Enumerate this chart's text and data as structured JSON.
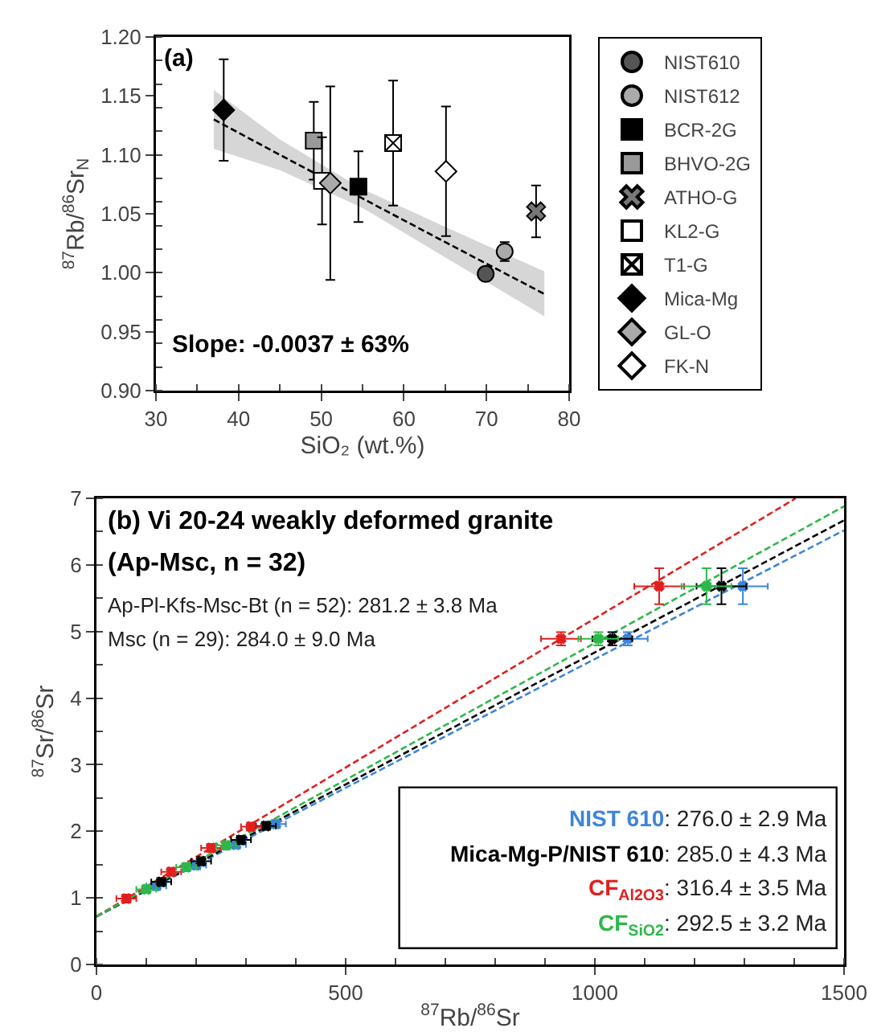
{
  "chart_data": [
    {
      "type": "scatter",
      "title": "(a)",
      "xlabel": "SiO₂ (wt.%)",
      "ylabel": "$^{87}$Rb/$^{86}$Sr$_{N}$",
      "xlim": [
        30,
        80
      ],
      "xticks": [
        30,
        40,
        50,
        60,
        70,
        80
      ],
      "ylim": [
        0.9,
        1.2
      ],
      "yticks": [
        {
          "value": 0.9,
          "label": "0.90"
        },
        {
          "value": 0.95,
          "label": "0.95"
        },
        {
          "value": 1.0,
          "label": "1.00"
        },
        {
          "value": 1.05,
          "label": "1.05"
        },
        {
          "value": 1.1,
          "label": "1.10"
        },
        {
          "value": 1.15,
          "label": "1.15"
        },
        {
          "value": 1.2,
          "label": "1.20"
        }
      ],
      "grid": false,
      "legend": "right",
      "annotations": [
        "Slope: -0.0037 ± 63%"
      ],
      "series": [
        {
          "type": "line",
          "color": "#000000",
          "line_style": "dashed",
          "marker": "none",
          "x": [
            37,
            45,
            55,
            65,
            77
          ],
          "values": [
            1.13,
            1.1,
            1.063,
            1.026,
            0.982
          ],
          "lower": [
            1.105,
            1.087,
            1.055,
            1.013,
            0.963
          ],
          "upper": [
            1.155,
            1.113,
            1.071,
            1.039,
            1.001
          ]
        },
        {
          "name": "NIST610",
          "color": "#555555",
          "marker": "circle",
          "x": [
            69.9
          ],
          "values": [
            0.999
          ]
        },
        {
          "name": "NIST612",
          "color": "#aaaaaa",
          "marker": "circle",
          "x": [
            72.2
          ],
          "values": [
            1.018
          ],
          "errors": [
            0.008
          ]
        },
        {
          "name": "BCR-2G",
          "color": "#000000",
          "marker": "square",
          "x": [
            54.5
          ],
          "values": [
            1.073
          ],
          "errors": [
            0.03
          ]
        },
        {
          "name": "BHVO-2G",
          "color": "#999999",
          "marker": "square",
          "x": [
            49.1
          ],
          "values": [
            1.112
          ],
          "errors": [
            0.033
          ]
        },
        {
          "name": "ATHO-G",
          "color": "#777777",
          "marker": "cross",
          "x": [
            76
          ],
          "values": [
            1.052
          ],
          "errors": [
            0.022
          ]
        },
        {
          "name": "KL2-G",
          "color": "#ffffff",
          "marker": "square",
          "x": [
            50.1
          ],
          "values": [
            1.078
          ],
          "errors": [
            0.037
          ]
        },
        {
          "name": "T1-G",
          "color": "#ffffff",
          "marker": "cross",
          "x": [
            58.7
          ],
          "values": [
            1.11
          ],
          "errors": [
            0.053
          ]
        },
        {
          "name": "Mica-Mg",
          "color": "#000000",
          "marker": "diamond",
          "x": [
            38.2
          ],
          "values": [
            1.138
          ],
          "errors": [
            0.043
          ]
        },
        {
          "name": "GL-O",
          "color": "#aaaaaa",
          "marker": "diamond",
          "x": [
            51.1
          ],
          "values": [
            1.076
          ],
          "errors": [
            0.082
          ]
        },
        {
          "name": "FK-N",
          "color": "#ffffff",
          "marker": "diamond",
          "x": [
            65.1
          ],
          "values": [
            1.086
          ],
          "errors": [
            0.055
          ]
        }
      ]
    },
    {
      "type": "scatter",
      "title": "(b) Vi 20-24 weakly deformed granite",
      "subtitle": "(Ap-Msc, n = 32)",
      "xlabel": "$^{87}$Rb/$^{86}$Sr",
      "ylabel": "$^{87}$Sr/$^{86}$Sr",
      "xlim": [
        0,
        1500
      ],
      "xticks": [
        0,
        500,
        1000,
        1500
      ],
      "ylim": [
        0,
        7
      ],
      "yticks": [
        0,
        1,
        2,
        3,
        4,
        5,
        6,
        7
      ],
      "grid": false,
      "legend": false,
      "annotations": [
        "Ap-Pl-Kfs-Msc-Bt (n = 52): 281.2 ± 3.8 Ma",
        "Msc (n = 29): 284.0 ± 9.0 Ma",
        ": 276.0 ± 2.9 Ma",
        ": 285.0 ± 4.3 Ma",
        ": 316.4 ± 3.5 Ma",
        ": 292.5 ± 3.2 Ma"
      ],
      "series": [
        {
          "type": "line",
          "color": "#3d85d6",
          "line_style": "dashed",
          "x": [
            0,
            1500
          ],
          "values": [
            0.72,
            6.52
          ]
        },
        {
          "type": "line",
          "color": "#000000",
          "line_style": "dashed",
          "x": [
            0,
            1500
          ],
          "values": [
            0.72,
            6.67
          ]
        },
        {
          "type": "line",
          "color": "#e02020",
          "line_style": "dashed",
          "x": [
            0,
            1403
          ],
          "values": [
            0.72,
            7
          ]
        },
        {
          "type": "line",
          "color": "#2db84a",
          "line_style": "dashed",
          "x": [
            0,
            1500
          ],
          "values": [
            0.72,
            6.88
          ]
        },
        {
          "name": "NIST 610",
          "color": "#3d85d6",
          "marker": "cross",
          "x": [
            120,
            200,
            280,
            360,
            1066,
            1297
          ],
          "values": [
            1.18,
            1.49,
            1.8,
            2.11,
            4.89,
            5.68
          ],
          "errors": [
            0.06,
            0.06,
            0.06,
            0.06,
            0.1,
            0.27
          ],
          "xerrors": [
            20,
            20,
            20,
            20,
            40,
            50
          ]
        },
        {
          "name": "Mica-Mg-P/NIST 610",
          "color": "#000000",
          "marker": "cross",
          "x": [
            130,
            210,
            290,
            340,
            1035,
            1254
          ],
          "values": [
            1.24,
            1.55,
            1.87,
            2.08,
            4.89,
            5.68
          ],
          "errors": [
            0.06,
            0.06,
            0.06,
            0.06,
            0.1,
            0.27
          ],
          "xerrors": [
            20,
            20,
            20,
            20,
            40,
            50
          ]
        },
        {
          "name": "CF$_{Al2O3}$",
          "color": "#e02020",
          "marker": "cross",
          "x": [
            60,
            150,
            230,
            310,
            932,
            1129
          ],
          "values": [
            0.99,
            1.39,
            1.75,
            2.07,
            4.89,
            5.68
          ],
          "errors": [
            0.06,
            0.06,
            0.06,
            0.06,
            0.1,
            0.27
          ],
          "xerrors": [
            20,
            20,
            20,
            20,
            40,
            50
          ]
        },
        {
          "name": "CF$_{SiO2}$",
          "color": "#2db84a",
          "marker": "cross",
          "x": [
            100,
            180,
            260,
            1007,
            1224
          ],
          "values": [
            1.13,
            1.46,
            1.79,
            4.89,
            5.68
          ],
          "errors": [
            0.06,
            0.06,
            0.06,
            0.1,
            0.27
          ],
          "xerrors": [
            20,
            20,
            20,
            40,
            50
          ]
        }
      ]
    }
  ]
}
